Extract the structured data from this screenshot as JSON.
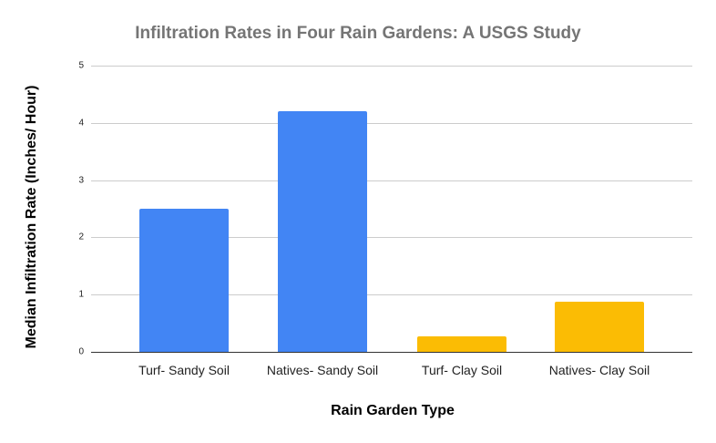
{
  "chart_data": {
    "type": "bar",
    "title": "Infiltration Rates in Four Rain Gardens: A USGS Study",
    "xlabel": "Rain Garden Type",
    "ylabel": "Median Infiltration Rate (Inches/ Hour)",
    "categories": [
      "Turf- Sandy Soil",
      "Natives- Sandy Soil",
      "Turf- Clay Soil",
      "Natives- Clay Soil"
    ],
    "values": [
      2.5,
      4.2,
      0.27,
      0.88
    ],
    "colors": [
      "#4285f4",
      "#4285f4",
      "#fbbc04",
      "#fbbc04"
    ],
    "ylim": [
      0,
      5
    ],
    "yticks": [
      "0",
      "1",
      "2",
      "3",
      "4",
      "5"
    ],
    "grid": true,
    "legend": "none"
  }
}
